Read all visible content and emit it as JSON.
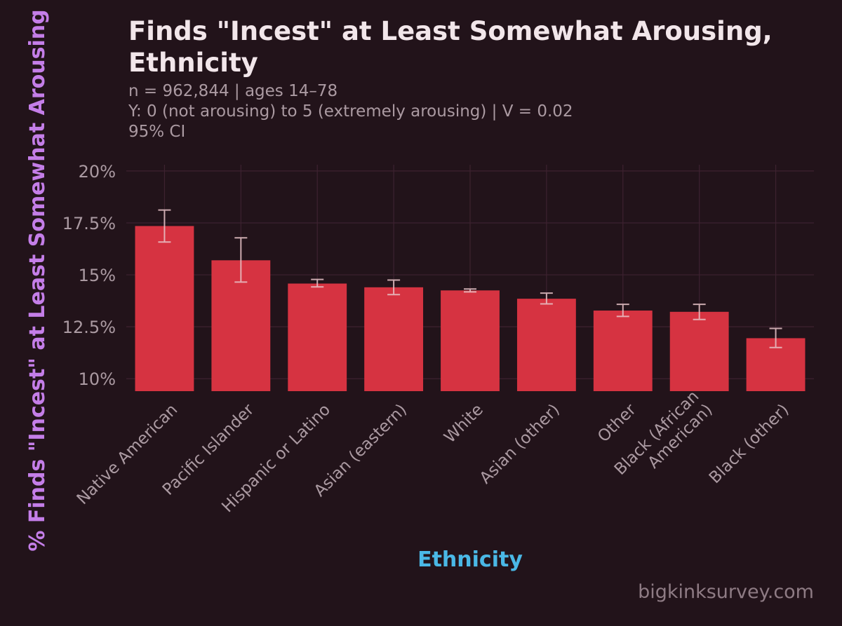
{
  "chart_data": {
    "type": "bar",
    "title_lines": [
      "Finds \"Incest\" at Least Somewhat Arousing,",
      "Ethnicity"
    ],
    "subtitle_lines": [
      "n = 962,844  |  ages 14–78",
      "Y: 0 (not arousing) to 5 (extremely arousing)  |  V = 0.02",
      "95% CI"
    ],
    "xlabel": "Ethnicity",
    "ylabel": "% Finds \"Incest\" at Least Somewhat Arousing",
    "ylim": [
      9.4,
      20.3
    ],
    "yticks": [
      10,
      12.5,
      15,
      17.5,
      20
    ],
    "ytick_labels": [
      "10%",
      "12.5%",
      "15%",
      "17.5%",
      "20%"
    ],
    "categories": [
      "Native American",
      "Pacific Islander",
      "Hispanic or Latino",
      "Asian (eastern)",
      "White",
      "Asian (other)",
      "Other",
      "Black (African American)",
      "Black (other)"
    ],
    "category_label_lines": [
      [
        "Native American"
      ],
      [
        "Pacific Islander"
      ],
      [
        "Hispanic or Latino"
      ],
      [
        "Asian (eastern)"
      ],
      [
        "White"
      ],
      [
        "Asian (other)"
      ],
      [
        "Other"
      ],
      [
        "Black (African",
        "American)"
      ],
      [
        "Black (other)"
      ]
    ],
    "values": [
      17.35,
      15.7,
      14.58,
      14.4,
      14.25,
      13.85,
      13.28,
      13.22,
      11.95
    ],
    "ci_low": [
      16.58,
      14.65,
      14.42,
      14.05,
      14.18,
      13.6,
      13.0,
      12.85,
      11.5
    ],
    "ci_high": [
      18.12,
      16.78,
      14.78,
      14.75,
      14.32,
      14.12,
      13.58,
      13.58,
      12.42
    ],
    "grid": true,
    "colors": {
      "background": "#22131a",
      "bar": "#d63341",
      "error_bar": "#e8c4c8",
      "grid": "#3d2230",
      "tick_text": "#ab9aa2",
      "xlabel": "#4ab8e6",
      "ylabel": "#c47ee8",
      "title": "#f2e6ea"
    }
  },
  "watermark": "bigkinksurvey.com"
}
